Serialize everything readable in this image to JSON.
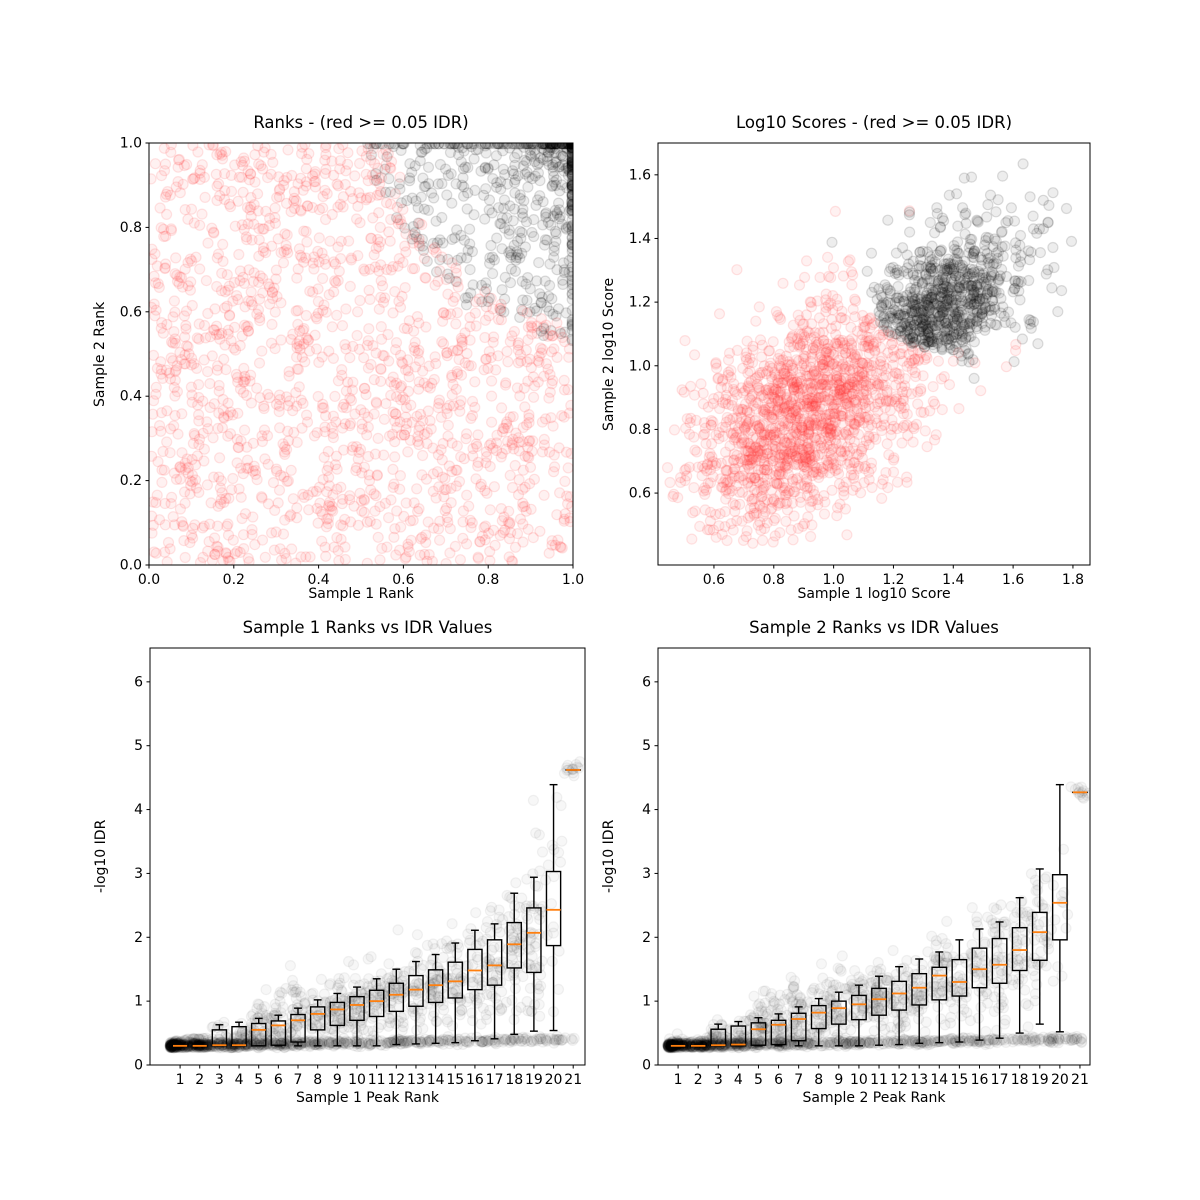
{
  "figure": {
    "background": "#ffffff",
    "description": "IDR diagnostic figure with four subplots: rank scatter, log10 score scatter, and two rank-vs-IDR boxplot panels"
  },
  "colors": {
    "red_points": "#ff3333",
    "black_points": "#000000",
    "grey_points": "#000000",
    "median_line": "#ff7f0e",
    "box_line": "#000000",
    "axis_line": "#000000",
    "text": "#000000"
  },
  "chart_data": [
    {
      "id": "ranks",
      "type": "scatter",
      "title": "Ranks - (red >= 0.05 IDR)",
      "xlabel": "Sample 1 Rank",
      "ylabel": "Sample 2 Rank",
      "xlim": [
        0,
        1
      ],
      "ylim": [
        0,
        1
      ],
      "xticks": {
        "values": [
          0,
          0.2,
          0.4,
          0.6,
          0.8,
          1.0
        ],
        "labels": [
          "0.0",
          "0.2",
          "0.4",
          "0.6",
          "0.8",
          "1.0"
        ]
      },
      "yticks": {
        "values": [
          0,
          0.2,
          0.4,
          0.6,
          0.8,
          1.0
        ],
        "labels": [
          "0.0",
          "0.2",
          "0.4",
          "0.6",
          "0.8",
          "1.0"
        ]
      },
      "point": {
        "radius": 5,
        "fill_opacity": 0.07,
        "stroke_opacity": 0.13
      },
      "series": [
        {
          "name": "red-idr-ge-0.05",
          "color": "#ff3333",
          "n": 1500,
          "gen": {
            "type": "uniform",
            "min": [
              0.003,
              0.003
            ],
            "max": [
              0.997,
              0.997
            ],
            "exclude_ellipse": {
              "cx": 1.07,
              "cy": 1.07,
              "rx": 0.5,
              "ry": 0.5
            }
          }
        },
        {
          "name": "black-idr-lt-0.05",
          "color": "#000000",
          "n": 720,
          "gen": {
            "type": "corner_blob",
            "cx": 1.07,
            "cy": 1.07,
            "rmax": 0.56,
            "rpow": 1.25,
            "clipmax": 0.998
          }
        }
      ]
    },
    {
      "id": "scores",
      "type": "scatter",
      "title": "Log10 Scores - (red >= 0.05 IDR)",
      "xlabel": "Sample 1 log10 Score",
      "ylabel": "Sample 2 log10 Score",
      "xlim": [
        0.413,
        1.857
      ],
      "ylim": [
        0.374,
        1.7
      ],
      "xticks": {
        "values": [
          0.6,
          0.8,
          1.0,
          1.2,
          1.4,
          1.6,
          1.8
        ],
        "labels": [
          "0.6",
          "0.8",
          "1.0",
          "1.2",
          "1.4",
          "1.6",
          "1.8"
        ]
      },
      "yticks": {
        "values": [
          0.6,
          0.8,
          1.0,
          1.2,
          1.4,
          1.6
        ],
        "labels": [
          "0.6",
          "0.8",
          "1.0",
          "1.2",
          "1.4",
          "1.6"
        ]
      },
      "point": {
        "radius": 5,
        "fill_opacity": 0.07,
        "stroke_opacity": 0.13
      },
      "series": [
        {
          "name": "red-idr-ge-0.05",
          "color": "#ff3333",
          "n": 1500,
          "gen": {
            "type": "gauss",
            "mean": [
              0.93,
              0.87
            ],
            "sd": [
              0.205,
              0.185
            ],
            "rho": 0.45,
            "min": [
              0.44,
              0.44
            ],
            "max": [
              1.62,
              1.52
            ],
            "exclude_ellipse": {
              "cx": 1.42,
              "cy": 1.26,
              "rx": 0.34,
              "ry": 0.215
            }
          }
        },
        {
          "name": "black-idr-lt-0.05",
          "color": "#000000",
          "n": 750,
          "gen": {
            "type": "gauss_mix",
            "core": {
              "mean": [
                1.33,
                1.16
              ],
              "sd": [
                0.115,
                0.095
              ],
              "rho": 0.5
            },
            "core_frac": 0.72,
            "halo": {
              "mean": [
                1.45,
                1.3
              ],
              "sd": [
                0.17,
                0.14
              ],
              "rho": 0.3
            },
            "min": [
              0.88,
              0.82
            ],
            "max": [
              1.83,
              1.655
            ],
            "boundary_ellipse": {
              "cx": 1.42,
              "cy": 1.26,
              "rx": 0.34,
              "ry": 0.215
            }
          }
        }
      ]
    },
    {
      "id": "boxes1",
      "type": "boxplot",
      "title": "Sample 1 Ranks vs IDR Values",
      "xlabel": "Sample 1 Peak Rank",
      "ylabel": "-log10 IDR",
      "xlim": [
        -0.53,
        21.6
      ],
      "ylim": [
        0,
        6.53
      ],
      "xticks": {
        "values": [
          1,
          2,
          3,
          4,
          5,
          6,
          7,
          8,
          9,
          10,
          11,
          12,
          13,
          14,
          15,
          16,
          17,
          18,
          19,
          20,
          21
        ],
        "labels": [
          "1",
          "2",
          "3",
          "4",
          "5",
          "6",
          "7",
          "8",
          "9",
          "10",
          "11",
          "12",
          "13",
          "14",
          "15",
          "16",
          "17",
          "18",
          "19",
          "20",
          "21"
        ]
      },
      "yticks": {
        "values": [
          0,
          1,
          2,
          3,
          4,
          5,
          6
        ],
        "labels": [
          "0",
          "1",
          "2",
          "3",
          "4",
          "5",
          "6"
        ]
      },
      "cloud": {
        "color": "#000000",
        "radius": 5,
        "fill_opacity": 0.03,
        "stroke_opacity": 0.05,
        "n_band": 620,
        "band_y": 0.3,
        "band_sd": 0.022,
        "band_slope": 0.005,
        "band_x_power": 2.0,
        "n_spread": 980,
        "sd_factor": 0.72,
        "y_min": 0.27
      },
      "boxes": {
        "median_color": "#ff7f0e",
        "line_color": "#000000",
        "ranks": [
          1,
          2,
          3,
          4,
          5,
          6,
          7,
          8,
          9,
          10,
          11,
          12,
          13,
          14,
          15,
          16,
          17,
          18,
          19,
          20,
          21
        ],
        "whisker_low": [
          0.29,
          0.29,
          0.3,
          0.3,
          0.3,
          0.3,
          0.3,
          0.3,
          0.3,
          0.3,
          0.3,
          0.32,
          0.33,
          0.34,
          0.35,
          0.38,
          0.41,
          0.48,
          0.53,
          0.54,
          4.62
        ],
        "q1": [
          0.29,
          0.29,
          0.3,
          0.3,
          0.3,
          0.31,
          0.36,
          0.55,
          0.62,
          0.7,
          0.76,
          0.84,
          0.92,
          0.98,
          1.05,
          1.18,
          1.25,
          1.52,
          1.45,
          1.87,
          4.62
        ],
        "median": [
          0.3,
          0.3,
          0.31,
          0.31,
          0.55,
          0.62,
          0.7,
          0.8,
          0.87,
          0.94,
          1.0,
          1.1,
          1.18,
          1.25,
          1.31,
          1.48,
          1.56,
          1.89,
          2.07,
          2.43,
          4.62
        ],
        "q3": [
          0.31,
          0.31,
          0.55,
          0.6,
          0.65,
          0.69,
          0.79,
          0.91,
          0.98,
          1.07,
          1.17,
          1.28,
          1.4,
          1.49,
          1.61,
          1.81,
          1.96,
          2.23,
          2.46,
          3.03,
          4.62
        ],
        "whisker_high": [
          0.31,
          0.32,
          0.63,
          0.67,
          0.73,
          0.78,
          0.89,
          1.02,
          1.12,
          1.22,
          1.35,
          1.5,
          1.62,
          1.73,
          1.91,
          2.11,
          2.21,
          2.69,
          2.94,
          4.39,
          4.62
        ]
      }
    },
    {
      "id": "boxes2",
      "type": "boxplot",
      "title": "Sample 2 Ranks vs IDR Values",
      "xlabel": "Sample 2 Peak Rank",
      "ylabel": "-log10 IDR",
      "xlim": [
        0.0,
        21.5
      ],
      "ylim": [
        0,
        6.53
      ],
      "xticks": {
        "values": [
          1,
          2,
          3,
          4,
          5,
          6,
          7,
          8,
          9,
          10,
          11,
          12,
          13,
          14,
          15,
          16,
          17,
          18,
          19,
          20,
          21
        ],
        "labels": [
          "1",
          "2",
          "3",
          "4",
          "5",
          "6",
          "7",
          "8",
          "9",
          "10",
          "11",
          "12",
          "13",
          "14",
          "15",
          "16",
          "17",
          "18",
          "19",
          "20",
          "21"
        ]
      },
      "yticks": {
        "values": [
          0,
          1,
          2,
          3,
          4,
          5,
          6
        ],
        "labels": [
          "0",
          "1",
          "2",
          "3",
          "4",
          "5",
          "6"
        ]
      },
      "cloud": {
        "color": "#000000",
        "radius": 5,
        "fill_opacity": 0.03,
        "stroke_opacity": 0.05,
        "n_band": 620,
        "band_y": 0.3,
        "band_sd": 0.022,
        "band_slope": 0.005,
        "band_x_power": 2.0,
        "n_spread": 980,
        "sd_factor": 0.72,
        "y_min": 0.27
      },
      "boxes": {
        "median_color": "#ff7f0e",
        "line_color": "#000000",
        "ranks": [
          1,
          2,
          3,
          4,
          5,
          6,
          7,
          8,
          9,
          10,
          11,
          12,
          13,
          14,
          15,
          16,
          17,
          18,
          19,
          20,
          21
        ],
        "whisker_low": [
          0.29,
          0.29,
          0.3,
          0.3,
          0.3,
          0.3,
          0.3,
          0.3,
          0.3,
          0.3,
          0.31,
          0.32,
          0.34,
          0.35,
          0.36,
          0.39,
          0.42,
          0.5,
          0.64,
          0.52,
          4.27
        ],
        "q1": [
          0.29,
          0.29,
          0.3,
          0.3,
          0.31,
          0.32,
          0.38,
          0.57,
          0.64,
          0.71,
          0.78,
          0.86,
          0.94,
          1.02,
          1.08,
          1.21,
          1.28,
          1.48,
          1.64,
          1.96,
          4.27
        ],
        "median": [
          0.3,
          0.3,
          0.31,
          0.32,
          0.56,
          0.63,
          0.72,
          0.82,
          0.89,
          0.95,
          1.03,
          1.12,
          1.21,
          1.4,
          1.3,
          1.5,
          1.57,
          1.8,
          2.08,
          2.54,
          4.27
        ],
        "q3": [
          0.31,
          0.31,
          0.56,
          0.61,
          0.66,
          0.7,
          0.81,
          0.93,
          1.0,
          1.09,
          1.2,
          1.31,
          1.43,
          1.53,
          1.65,
          1.83,
          1.98,
          2.15,
          2.39,
          2.98,
          4.27
        ],
        "whisker_high": [
          0.31,
          0.32,
          0.64,
          0.68,
          0.74,
          0.8,
          0.91,
          1.04,
          1.14,
          1.25,
          1.39,
          1.54,
          1.66,
          1.77,
          1.96,
          2.13,
          2.24,
          2.62,
          3.07,
          4.39,
          4.27
        ]
      }
    }
  ]
}
